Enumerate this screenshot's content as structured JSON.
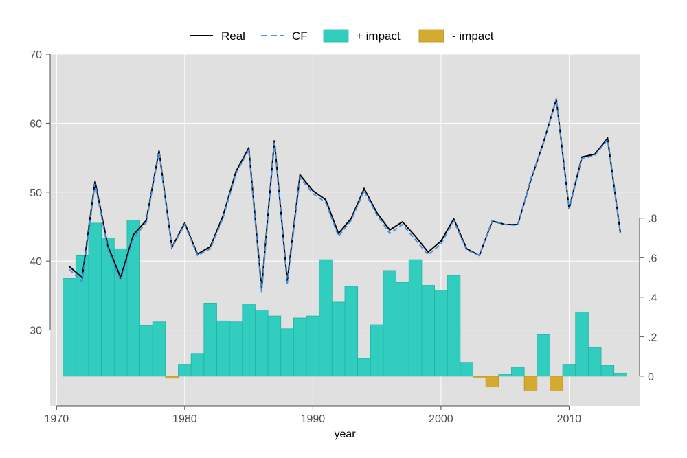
{
  "chart_data": {
    "type": "bar+line",
    "title": "",
    "xlabel": "year",
    "ylabel_left": "",
    "ylabel_right": "",
    "legend": {
      "position": "top",
      "entries": [
        {
          "key": "real",
          "label": "Real",
          "kind": "line",
          "color": "#000000"
        },
        {
          "key": "cf",
          "label": "CF",
          "kind": "dashed-line",
          "color": "#4a90e2"
        },
        {
          "key": "pos",
          "label": "+ impact",
          "kind": "bar",
          "color": "#31cdbf"
        },
        {
          "key": "neg",
          "label": "- impact",
          "kind": "bar",
          "color": "#d4ab30"
        }
      ]
    },
    "x_axis": {
      "range": [
        1969.5,
        2015.5
      ],
      "ticks": [
        1970,
        1980,
        1990,
        2000,
        2010
      ],
      "tick_labels": [
        "1970",
        "1980",
        "1990",
        "2000",
        "2010"
      ]
    },
    "y_left": {
      "range": [
        19,
        70
      ],
      "ticks": [
        30,
        40,
        50,
        60,
        70
      ],
      "tick_labels": [
        "30",
        "40",
        "50",
        "60",
        "70"
      ]
    },
    "y_right": {
      "range": [
        -0.15,
        1.63
      ],
      "ticks": [
        0,
        0.2,
        0.4,
        0.6,
        0.8
      ],
      "tick_labels": [
        "0",
        ".2",
        ".4",
        ".6",
        ".8"
      ]
    },
    "grid": true,
    "years": [
      1971,
      1972,
      1973,
      1974,
      1975,
      1976,
      1977,
      1978,
      1979,
      1980,
      1981,
      1982,
      1983,
      1984,
      1985,
      1986,
      1987,
      1988,
      1989,
      1990,
      1991,
      1992,
      1993,
      1994,
      1995,
      1996,
      1997,
      1998,
      1999,
      2000,
      2001,
      2002,
      2003,
      2004,
      2005,
      2006,
      2007,
      2008,
      2009,
      2010,
      2011,
      2012,
      2013,
      2014
    ],
    "series": [
      {
        "key": "real",
        "name": "Real",
        "axis": "left",
        "values": [
          39.2,
          37.6,
          51.6,
          42.2,
          37.6,
          43.8,
          45.9,
          56.0,
          42.0,
          45.5,
          41.0,
          42.1,
          46.6,
          53.0,
          56.4,
          36.0,
          57.5,
          37.1,
          52.5,
          50.2,
          48.9,
          44.0,
          46.2,
          50.5,
          47.0,
          44.5,
          45.7,
          43.6,
          41.3,
          42.9,
          46.1,
          41.8,
          40.8,
          45.8,
          45.3,
          45.3,
          51.7,
          57.2,
          63.5,
          47.6,
          55.1,
          55.5,
          57.8,
          44.1
        ]
      },
      {
        "key": "cf",
        "name": "CF",
        "axis": "left",
        "values": [
          38.8,
          37.0,
          51.2,
          41.8,
          37.1,
          43.3,
          45.6,
          55.8,
          41.9,
          45.3,
          40.8,
          41.8,
          46.3,
          52.7,
          56.1,
          35.5,
          57.2,
          36.7,
          52.1,
          49.8,
          48.5,
          43.6,
          45.9,
          50.2,
          46.7,
          44.0,
          45.3,
          43.1,
          40.9,
          42.5,
          45.8,
          41.6,
          40.8,
          45.9,
          45.3,
          45.2,
          51.9,
          57.1,
          63.6,
          47.5,
          54.9,
          55.3,
          57.6,
          44.0
        ]
      },
      {
        "key": "impact",
        "name": "impact",
        "axis": "right",
        "values": [
          0.495,
          0.61,
          0.775,
          0.7,
          0.645,
          0.79,
          0.255,
          0.275,
          -0.01,
          0.06,
          0.115,
          0.37,
          0.28,
          0.275,
          0.365,
          0.335,
          0.305,
          0.24,
          0.295,
          0.305,
          0.59,
          0.375,
          0.455,
          0.09,
          0.26,
          0.535,
          0.475,
          0.59,
          0.46,
          0.435,
          0.51,
          0.07,
          -0.005,
          -0.055,
          0.01,
          0.045,
          -0.075,
          0.21,
          -0.075,
          0.06,
          0.325,
          0.145,
          0.055,
          0.015
        ]
      }
    ]
  }
}
